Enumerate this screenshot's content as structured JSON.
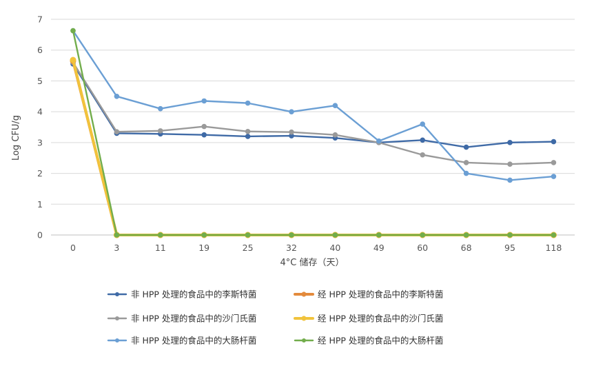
{
  "chart_data": {
    "type": "line",
    "title": "",
    "xlabel": "4°C 储存（天）",
    "ylabel": "Log CFU/g",
    "categories": [
      "0",
      "3",
      "11",
      "19",
      "25",
      "32",
      "40",
      "49",
      "60",
      "68",
      "95",
      "118"
    ],
    "ylim": [
      0,
      7
    ],
    "yticks": [
      0,
      1,
      2,
      3,
      4,
      5,
      6,
      7
    ],
    "grid": true,
    "legend_position": "bottom",
    "series": [
      {
        "name": "非 HPP 处理的食品中的李斯特菌",
        "color": "#3f6aa6",
        "values": [
          5.55,
          3.3,
          3.28,
          3.25,
          3.2,
          3.22,
          3.15,
          3.0,
          3.08,
          2.85,
          3.0,
          3.03
        ]
      },
      {
        "name": "经 HPP 处理的食品中的李斯特菌",
        "color": "#e38a3c",
        "values": [
          5.65,
          0,
          0,
          0,
          0,
          0,
          0,
          0,
          0,
          0,
          0,
          0
        ]
      },
      {
        "name": "非 HPP 处理的食品中的沙门氏菌",
        "color": "#9a9a9a",
        "values": [
          5.6,
          3.35,
          3.38,
          3.52,
          3.36,
          3.34,
          3.25,
          3.0,
          2.6,
          2.35,
          2.3,
          2.35
        ]
      },
      {
        "name": "经 HPP 处理的食品中的沙门氏菌",
        "color": "#f1c33c",
        "values": [
          5.68,
          0,
          0,
          0,
          0,
          0,
          0,
          0,
          0,
          0,
          0,
          0
        ]
      },
      {
        "name": "非 HPP 处理的食品中的大肠杆菌",
        "color": "#6b9fd4",
        "values": [
          6.63,
          4.5,
          4.1,
          4.35,
          4.28,
          4.0,
          4.2,
          3.05,
          3.6,
          2.0,
          1.78,
          1.9
        ]
      },
      {
        "name": "经 HPP 处理的食品中的大肠杆菌",
        "color": "#72ad4c",
        "values": [
          6.63,
          0,
          0,
          0,
          0,
          0,
          0,
          0,
          0,
          0,
          0,
          0
        ]
      }
    ]
  }
}
